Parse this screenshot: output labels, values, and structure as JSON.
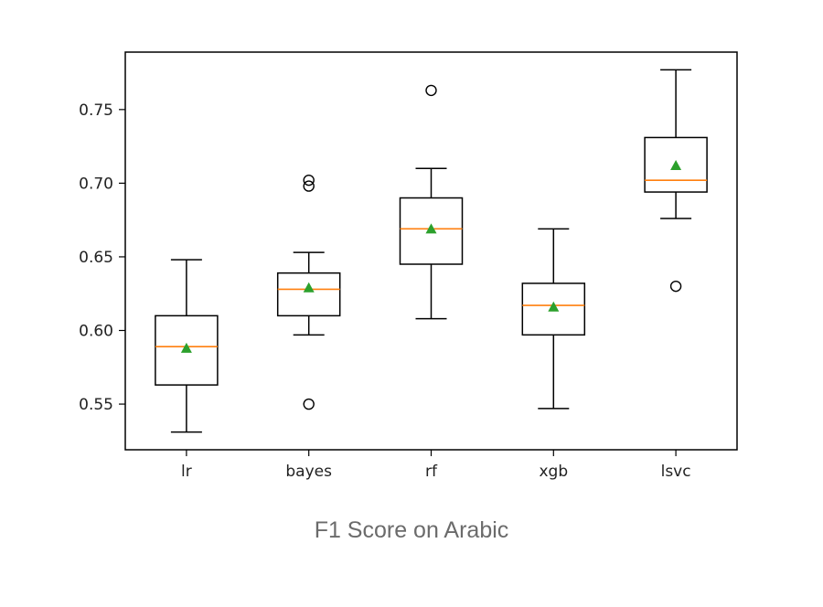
{
  "caption": "F1 Score on Arabic",
  "chart_data": {
    "type": "box",
    "title": "",
    "xlabel": "",
    "ylabel": "",
    "ylim": [
      0.519,
      0.789
    ],
    "yticks": [
      0.55,
      0.6,
      0.65,
      0.7,
      0.75
    ],
    "ytick_labels": [
      "0.55",
      "0.60",
      "0.65",
      "0.70",
      "0.75"
    ],
    "categories": [
      "lr",
      "bayes",
      "rf",
      "xgb",
      "lsvc"
    ],
    "boxes": [
      {
        "label": "lr",
        "whisker_low": 0.531,
        "q1": 0.563,
        "median": 0.589,
        "mean": 0.588,
        "q3": 0.61,
        "whisker_high": 0.648,
        "outliers": []
      },
      {
        "label": "bayes",
        "whisker_low": 0.597,
        "q1": 0.61,
        "median": 0.628,
        "mean": 0.629,
        "q3": 0.639,
        "whisker_high": 0.653,
        "outliers": [
          0.55,
          0.698,
          0.702
        ]
      },
      {
        "label": "rf",
        "whisker_low": 0.608,
        "q1": 0.645,
        "median": 0.669,
        "mean": 0.669,
        "q3": 0.69,
        "whisker_high": 0.71,
        "outliers": [
          0.763
        ]
      },
      {
        "label": "xgb",
        "whisker_low": 0.547,
        "q1": 0.597,
        "median": 0.617,
        "mean": 0.616,
        "q3": 0.632,
        "whisker_high": 0.669,
        "outliers": []
      },
      {
        "label": "lsvc",
        "whisker_low": 0.676,
        "q1": 0.694,
        "median": 0.702,
        "mean": 0.712,
        "q3": 0.731,
        "whisker_high": 0.777,
        "outliers": [
          0.63
        ]
      }
    ],
    "grid": false,
    "colors": {
      "box": "#000000",
      "median": "#ff7f0e",
      "mean": "#2ca02c",
      "outlier": "#000000"
    }
  }
}
